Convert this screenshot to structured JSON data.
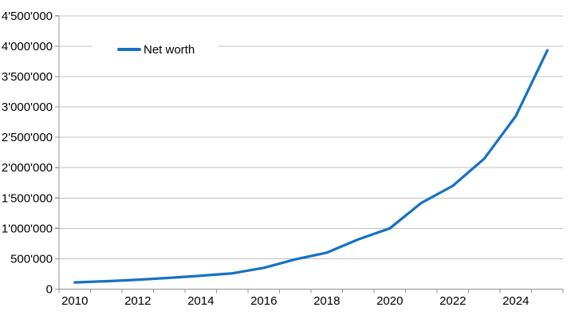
{
  "chart_data": {
    "type": "line",
    "title": "",
    "xlabel": "",
    "ylabel": "",
    "x": [
      2010,
      2011,
      2012,
      2013,
      2014,
      2015,
      2016,
      2017,
      2018,
      2019,
      2020,
      2021,
      2022,
      2023,
      2024,
      2025
    ],
    "series": [
      {
        "name": "Net worth",
        "values": [
          110000,
          130000,
          155000,
          185000,
          220000,
          260000,
          350000,
          490000,
          600000,
          820000,
          1000000,
          1420000,
          1700000,
          2150000,
          2850000,
          3930000
        ]
      }
    ],
    "ylim": [
      0,
      4500000
    ],
    "y_step": 500000,
    "y_tick_labels": [
      "0",
      "500'000",
      "1'000'000",
      "1'500'000",
      "2'000'000",
      "2'500'000",
      "3'000'000",
      "3'500'000",
      "4'000'000",
      "4'500'000"
    ],
    "x_tick_labels": [
      "2010",
      "2012",
      "2014",
      "2016",
      "2018",
      "2020",
      "2022",
      "2024"
    ],
    "grid": true,
    "legend_position": "top-left-inside",
    "colors": {
      "line": "#1672c3",
      "gridline": "#c0c0c0",
      "axis": "#959595",
      "text": "#000000",
      "background": "#ffffff"
    }
  }
}
